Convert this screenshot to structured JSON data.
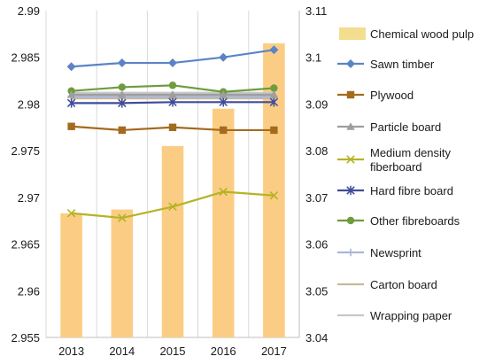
{
  "chart_data": {
    "type": "bar+line",
    "categories": [
      "2013",
      "2014",
      "2015",
      "2016",
      "2017"
    ],
    "y_left": {
      "min": 2.955,
      "max": 2.99,
      "ticks": [
        "2.955",
        "2.96",
        "2.965",
        "2.97",
        "2.975",
        "2.98",
        "2.985",
        "2.99"
      ]
    },
    "y_right": {
      "min": 3.04,
      "max": 3.11,
      "ticks": [
        "3.04",
        "3.05",
        "3.06",
        "3.07",
        "3.08",
        "3.09",
        "3.1",
        "3.11"
      ]
    },
    "grid": "vertical-only",
    "legend_position": "right",
    "series": [
      {
        "name": "Chemical wood pulp",
        "kind": "bar",
        "axis": "right",
        "color": "#FBCD84",
        "legend_color": "#F3DE8E",
        "values": [
          3.0666,
          3.0674,
          3.081,
          3.089,
          3.103
        ]
      },
      {
        "name": "Sawn timber",
        "kind": "line",
        "marker": "diamond",
        "axis": "left",
        "color": "#5B84C6",
        "values": [
          2.984,
          2.9844,
          2.9844,
          2.985,
          2.9858
        ]
      },
      {
        "name": "Plywood",
        "kind": "line",
        "marker": "square",
        "axis": "left",
        "color": "#A46A1E",
        "values": [
          2.9776,
          2.9772,
          2.9775,
          2.9772,
          2.9772
        ]
      },
      {
        "name": "Particle board",
        "kind": "line",
        "marker": "triangle",
        "axis": "left",
        "color": "#9E9E9E",
        "values": [
          2.981,
          2.981,
          2.981,
          2.981,
          2.981
        ]
      },
      {
        "name": "Medium density fiberboard",
        "kind": "line",
        "marker": "x",
        "axis": "left",
        "color": "#B5B326",
        "values": [
          2.9683,
          2.9678,
          2.969,
          2.9706,
          2.9702
        ]
      },
      {
        "name": "Hard fibre board",
        "kind": "line",
        "marker": "star",
        "axis": "left",
        "color": "#3E4C9A",
        "values": [
          2.9801,
          2.9801,
          2.9802,
          2.9802,
          2.9802
        ]
      },
      {
        "name": "Other fibreboards",
        "kind": "line",
        "marker": "circle",
        "axis": "left",
        "color": "#6E9C3E",
        "values": [
          2.9814,
          2.9818,
          2.982,
          2.9813,
          2.9817
        ]
      },
      {
        "name": "Newsprint",
        "kind": "line",
        "marker": "plus",
        "axis": "left",
        "color": "#A9B6DD",
        "values": [
          2.9808,
          2.9808,
          2.9808,
          2.9808,
          2.9808
        ]
      },
      {
        "name": "Carton board",
        "kind": "line",
        "marker": "none",
        "axis": "left",
        "color": "#C9B99A",
        "values": [
          2.9806,
          2.9806,
          2.9806,
          2.9806,
          2.9806
        ]
      },
      {
        "name": "Wrapping paper",
        "kind": "line",
        "marker": "none",
        "axis": "left",
        "color": "#C8C8C8",
        "values": [
          2.9812,
          2.9812,
          2.9812,
          2.9812,
          2.9812
        ]
      }
    ]
  }
}
